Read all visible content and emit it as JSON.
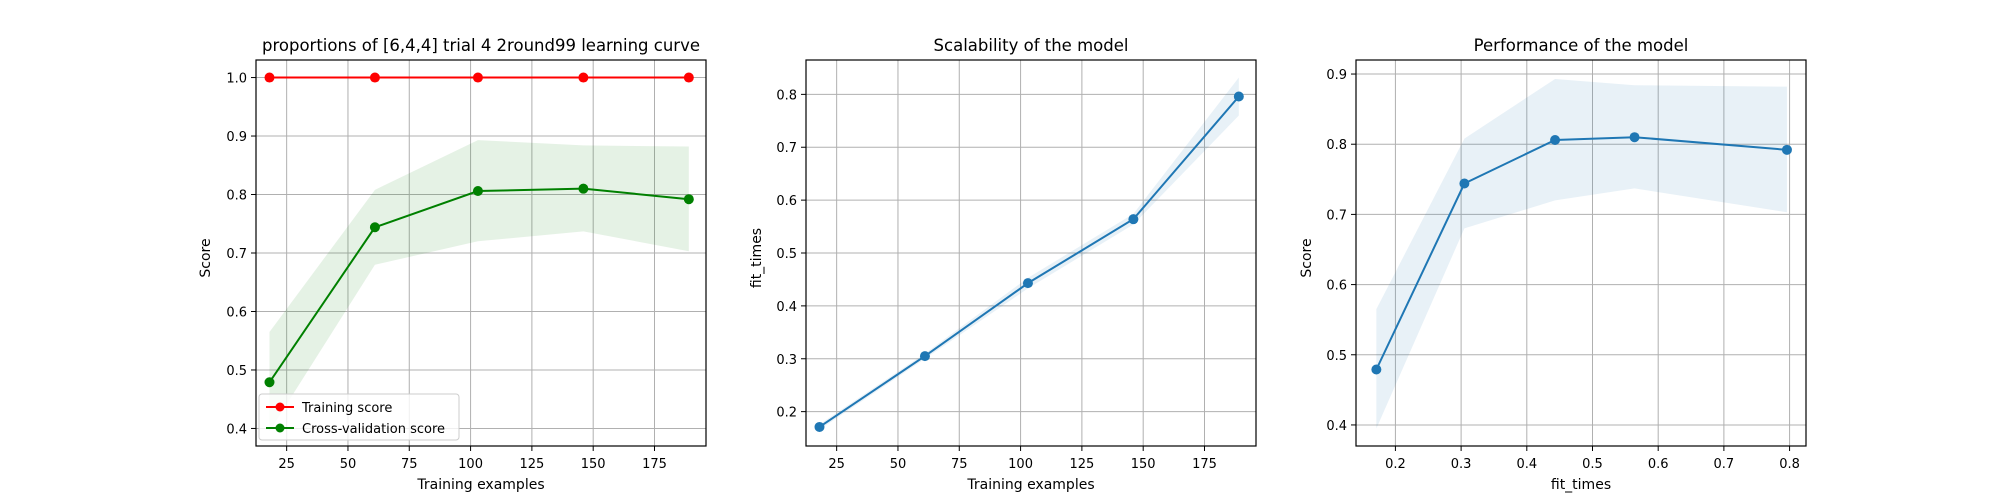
{
  "colors": {
    "training": "#ff0000",
    "cv": "#008000",
    "blue": "#1f77b4",
    "grid": "#b0b0b0"
  },
  "chart_data": [
    {
      "type": "line",
      "title": "proportions of [6,4,4] trial 4 2round99 learning curve",
      "xlabel": "Training examples",
      "ylabel": "Score",
      "xlim": [
        12.5,
        196
      ],
      "ylim": [
        0.37,
        1.03
      ],
      "xticks": [
        25,
        50,
        75,
        100,
        125,
        150,
        175
      ],
      "yticks": [
        0.4,
        0.5,
        0.6,
        0.7,
        0.8,
        0.9,
        1.0
      ],
      "xtick_labels": [
        "25",
        "50",
        "75",
        "100",
        "125",
        "150",
        "175"
      ],
      "ytick_labels": [
        "0.4",
        "0.5",
        "0.6",
        "0.7",
        "0.8",
        "0.9",
        "1.0"
      ],
      "grid": true,
      "legend_position": "lower-left",
      "x": [
        18,
        61,
        103,
        146,
        189
      ],
      "series": [
        {
          "name": "Training score",
          "color": "#ff0000",
          "values": [
            1.0,
            1.0,
            1.0,
            1.0,
            1.0
          ],
          "lower": [
            1.0,
            1.0,
            1.0,
            1.0,
            1.0
          ],
          "upper": [
            1.0,
            1.0,
            1.0,
            1.0,
            1.0
          ]
        },
        {
          "name": "Cross-validation score",
          "color": "#008000",
          "values": [
            0.479,
            0.744,
            0.806,
            0.81,
            0.792
          ],
          "lower": [
            0.395,
            0.68,
            0.72,
            0.737,
            0.703
          ],
          "upper": [
            0.565,
            0.808,
            0.893,
            0.884,
            0.882
          ]
        }
      ]
    },
    {
      "type": "line",
      "title": "Scalability of the model",
      "xlabel": "Training examples",
      "ylabel": "fit_times",
      "xlim": [
        12.5,
        196
      ],
      "ylim": [
        0.135,
        0.865
      ],
      "xticks": [
        25,
        50,
        75,
        100,
        125,
        150,
        175
      ],
      "yticks": [
        0.2,
        0.3,
        0.4,
        0.5,
        0.6,
        0.7,
        0.8
      ],
      "xtick_labels": [
        "25",
        "50",
        "75",
        "100",
        "125",
        "150",
        "175"
      ],
      "ytick_labels": [
        "0.2",
        "0.3",
        "0.4",
        "0.5",
        "0.6",
        "0.7",
        "0.8"
      ],
      "grid": true,
      "x": [
        18,
        61,
        103,
        146,
        189
      ],
      "series": [
        {
          "color": "#1f77b4",
          "values": [
            0.171,
            0.305,
            0.443,
            0.564,
            0.796
          ],
          "lower": [
            0.166,
            0.3,
            0.433,
            0.554,
            0.76
          ],
          "upper": [
            0.176,
            0.31,
            0.453,
            0.574,
            0.832
          ]
        }
      ]
    },
    {
      "type": "line",
      "title": "Performance of the model",
      "xlabel": "fit_times",
      "ylabel": "Score",
      "xlim": [
        0.14,
        0.825
      ],
      "ylim": [
        0.37,
        0.92
      ],
      "xticks": [
        0.2,
        0.3,
        0.4,
        0.5,
        0.6,
        0.7,
        0.8
      ],
      "yticks": [
        0.4,
        0.5,
        0.6,
        0.7,
        0.8,
        0.9
      ],
      "xtick_labels": [
        "0.2",
        "0.3",
        "0.4",
        "0.5",
        "0.6",
        "0.7",
        "0.8"
      ],
      "ytick_labels": [
        "0.4",
        "0.5",
        "0.6",
        "0.7",
        "0.8",
        "0.9"
      ],
      "grid": true,
      "x": [
        0.171,
        0.305,
        0.443,
        0.564,
        0.796
      ],
      "series": [
        {
          "color": "#1f77b4",
          "values": [
            0.479,
            0.744,
            0.806,
            0.81,
            0.792
          ],
          "lower": [
            0.395,
            0.68,
            0.72,
            0.737,
            0.703
          ],
          "upper": [
            0.565,
            0.808,
            0.893,
            0.884,
            0.882
          ]
        }
      ]
    }
  ]
}
